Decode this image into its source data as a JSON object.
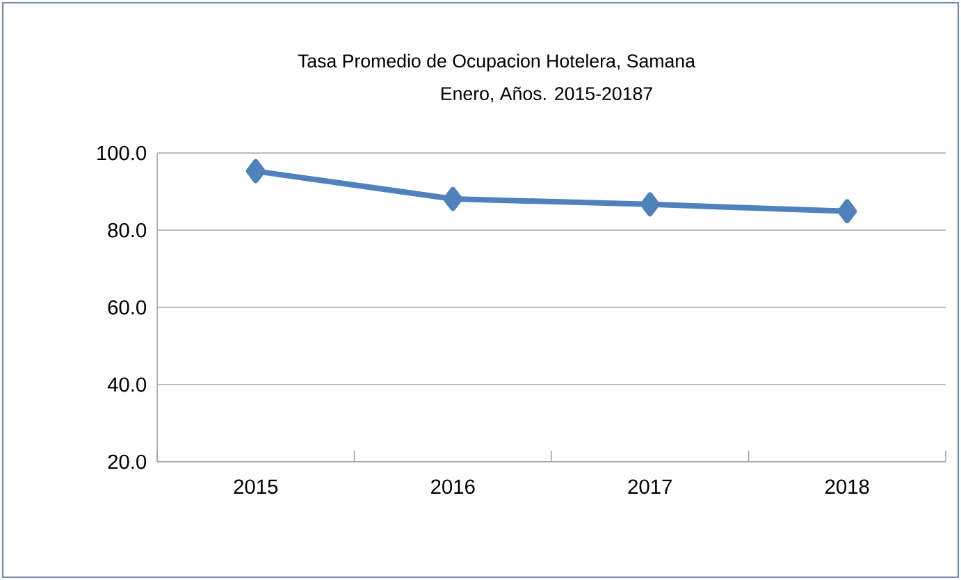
{
  "chart_data": {
    "type": "line",
    "title": "Tasa Promedio de Ocupacion Hotelera, Samana",
    "subtitle": "Enero, Años. 2015-20187",
    "categories": [
      "2015",
      "2016",
      "2017",
      "2018"
    ],
    "series": [
      {
        "color": "#4f81bd",
        "values": [
          95.3,
          88.1,
          86.7,
          84.9
        ]
      }
    ],
    "ylim": [
      20,
      100
    ],
    "yticks": [
      {
        "value": 20,
        "label": "20.0"
      },
      {
        "value": 40,
        "label": "40.0"
      },
      {
        "value": 60,
        "label": "60.0"
      },
      {
        "value": 80,
        "label": "80.0"
      },
      {
        "value": 100,
        "label": "100.0"
      }
    ],
    "grid": "y",
    "marker": "diamond",
    "line_style": "solid"
  }
}
